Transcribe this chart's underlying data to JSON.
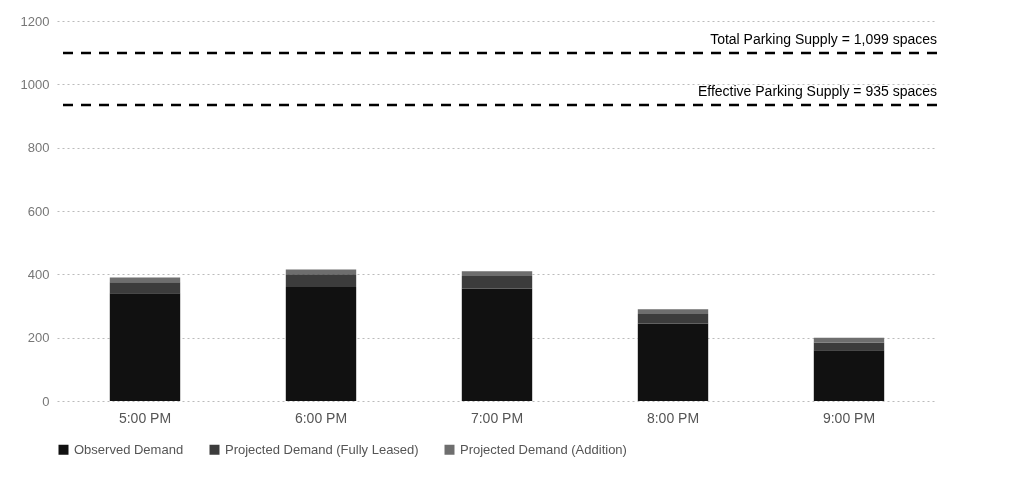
{
  "chart_data": {
    "type": "bar",
    "stacked": true,
    "categories": [
      "5:00 PM",
      "6:00 PM",
      "7:00 PM",
      "8:00 PM",
      "9:00 PM"
    ],
    "series": [
      {
        "name": "Observed Demand",
        "color": "#111111",
        "values": [
          340,
          360,
          355,
          245,
          160
        ]
      },
      {
        "name": "Projected Demand (Fully Leased)",
        "color": "#3c3c3c",
        "values": [
          35,
          40,
          40,
          30,
          25
        ]
      },
      {
        "name": "Projected Demand (Addition)",
        "color": "#6e6e6e",
        "values": [
          15,
          15,
          15,
          15,
          15
        ]
      }
    ],
    "ylim": [
      0,
      1200
    ],
    "yticks": [
      0,
      200,
      400,
      600,
      800,
      1000,
      1200
    ],
    "grid": "y",
    "legend": "bottom",
    "ref_lines": [
      {
        "axis": "y",
        "value": 1099,
        "label": "Total Parking Supply = 1,099 spaces",
        "color": "#000000",
        "line_style": "dashed"
      },
      {
        "axis": "y",
        "value": 935,
        "label": "Effective Parking Supply = 935 spaces",
        "color": "#000000",
        "line_style": "dashed"
      }
    ]
  }
}
